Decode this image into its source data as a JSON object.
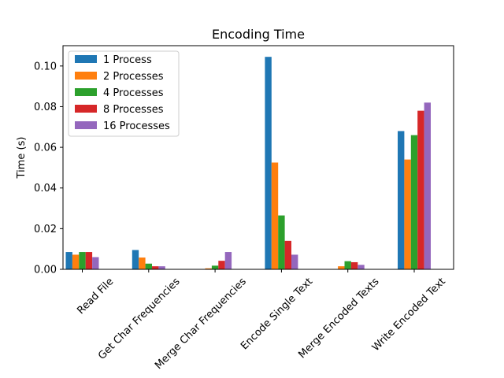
{
  "chart_data": {
    "type": "bar",
    "title": "Encoding Time",
    "xlabel": "",
    "ylabel": "Time (s)",
    "ylim": [
      0,
      0.11
    ],
    "yticks": [
      "0.00",
      "0.02",
      "0.04",
      "0.06",
      "0.08",
      "0.10"
    ],
    "categories": [
      "Read File",
      "Get Char Frequencies",
      "Merge Char Frequencies",
      "Encode Single Text",
      "Merge Encoded Texts",
      "Write Encoded Text"
    ],
    "series": [
      {
        "name": "1 Process",
        "color": "#1f77b4",
        "values": [
          0.0085,
          0.0095,
          0.0,
          0.1045,
          0.0,
          0.068
        ]
      },
      {
        "name": "2 Processes",
        "color": "#ff7f0e",
        "values": [
          0.0072,
          0.0058,
          0.0005,
          0.0525,
          0.0015,
          0.054
        ]
      },
      {
        "name": "4 Processes",
        "color": "#2ca02c",
        "values": [
          0.0085,
          0.0028,
          0.0018,
          0.0265,
          0.004,
          0.066
        ]
      },
      {
        "name": "8 Processes",
        "color": "#d62728",
        "values": [
          0.0085,
          0.0015,
          0.0042,
          0.014,
          0.0035,
          0.078
        ]
      },
      {
        "name": "16 Processes",
        "color": "#9467bd",
        "values": [
          0.006,
          0.0015,
          0.0085,
          0.0072,
          0.0022,
          0.082
        ]
      }
    ],
    "legend": "top-left",
    "grid": false
  }
}
